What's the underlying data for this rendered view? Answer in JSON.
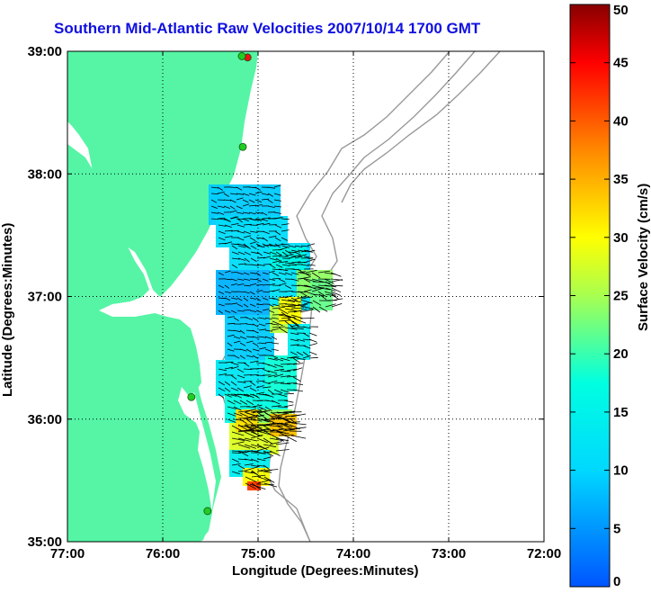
{
  "title": "Southern Mid-Atlantic Raw Velocities 2007/10/14 1700 GMT",
  "x_axis": {
    "label": "Longitude (Degrees:Minutes)",
    "ticks": [
      "77:00",
      "76:00",
      "75:00",
      "74:00",
      "73:00",
      "72:00"
    ]
  },
  "y_axis": {
    "label": "Latitude (Degrees:Minutes)",
    "ticks": [
      "39:00",
      "38:00",
      "37:00",
      "36:00",
      "35:00"
    ]
  },
  "colorbar": {
    "label": "Surface Velocity (cm/s)",
    "ticks": [
      "50",
      "45",
      "40",
      "35",
      "30",
      "25",
      "20",
      "15",
      "10",
      "5",
      "0"
    ],
    "min": 0,
    "max": 50,
    "colormap": "jet"
  },
  "colors": {
    "land": "#55f5a5",
    "title": "#1010e0",
    "bathymetry": "#999999",
    "arrows": "#000000",
    "station_active": "#22cc22",
    "station_alert": "#ee1111"
  },
  "extent": {
    "lon": [
      -77,
      -72
    ],
    "lat": [
      35,
      39
    ]
  },
  "grid": "dotted",
  "stations": [
    {
      "lon": -75.11,
      "lat": 38.95,
      "status": "alert"
    },
    {
      "lon": -75.17,
      "lat": 38.96,
      "status": "active"
    },
    {
      "lon": -75.16,
      "lat": 38.22,
      "status": "active"
    },
    {
      "lon": -75.7,
      "lat": 36.18,
      "status": "active"
    },
    {
      "lon": -75.53,
      "lat": 35.25,
      "status": "active"
    }
  ]
}
